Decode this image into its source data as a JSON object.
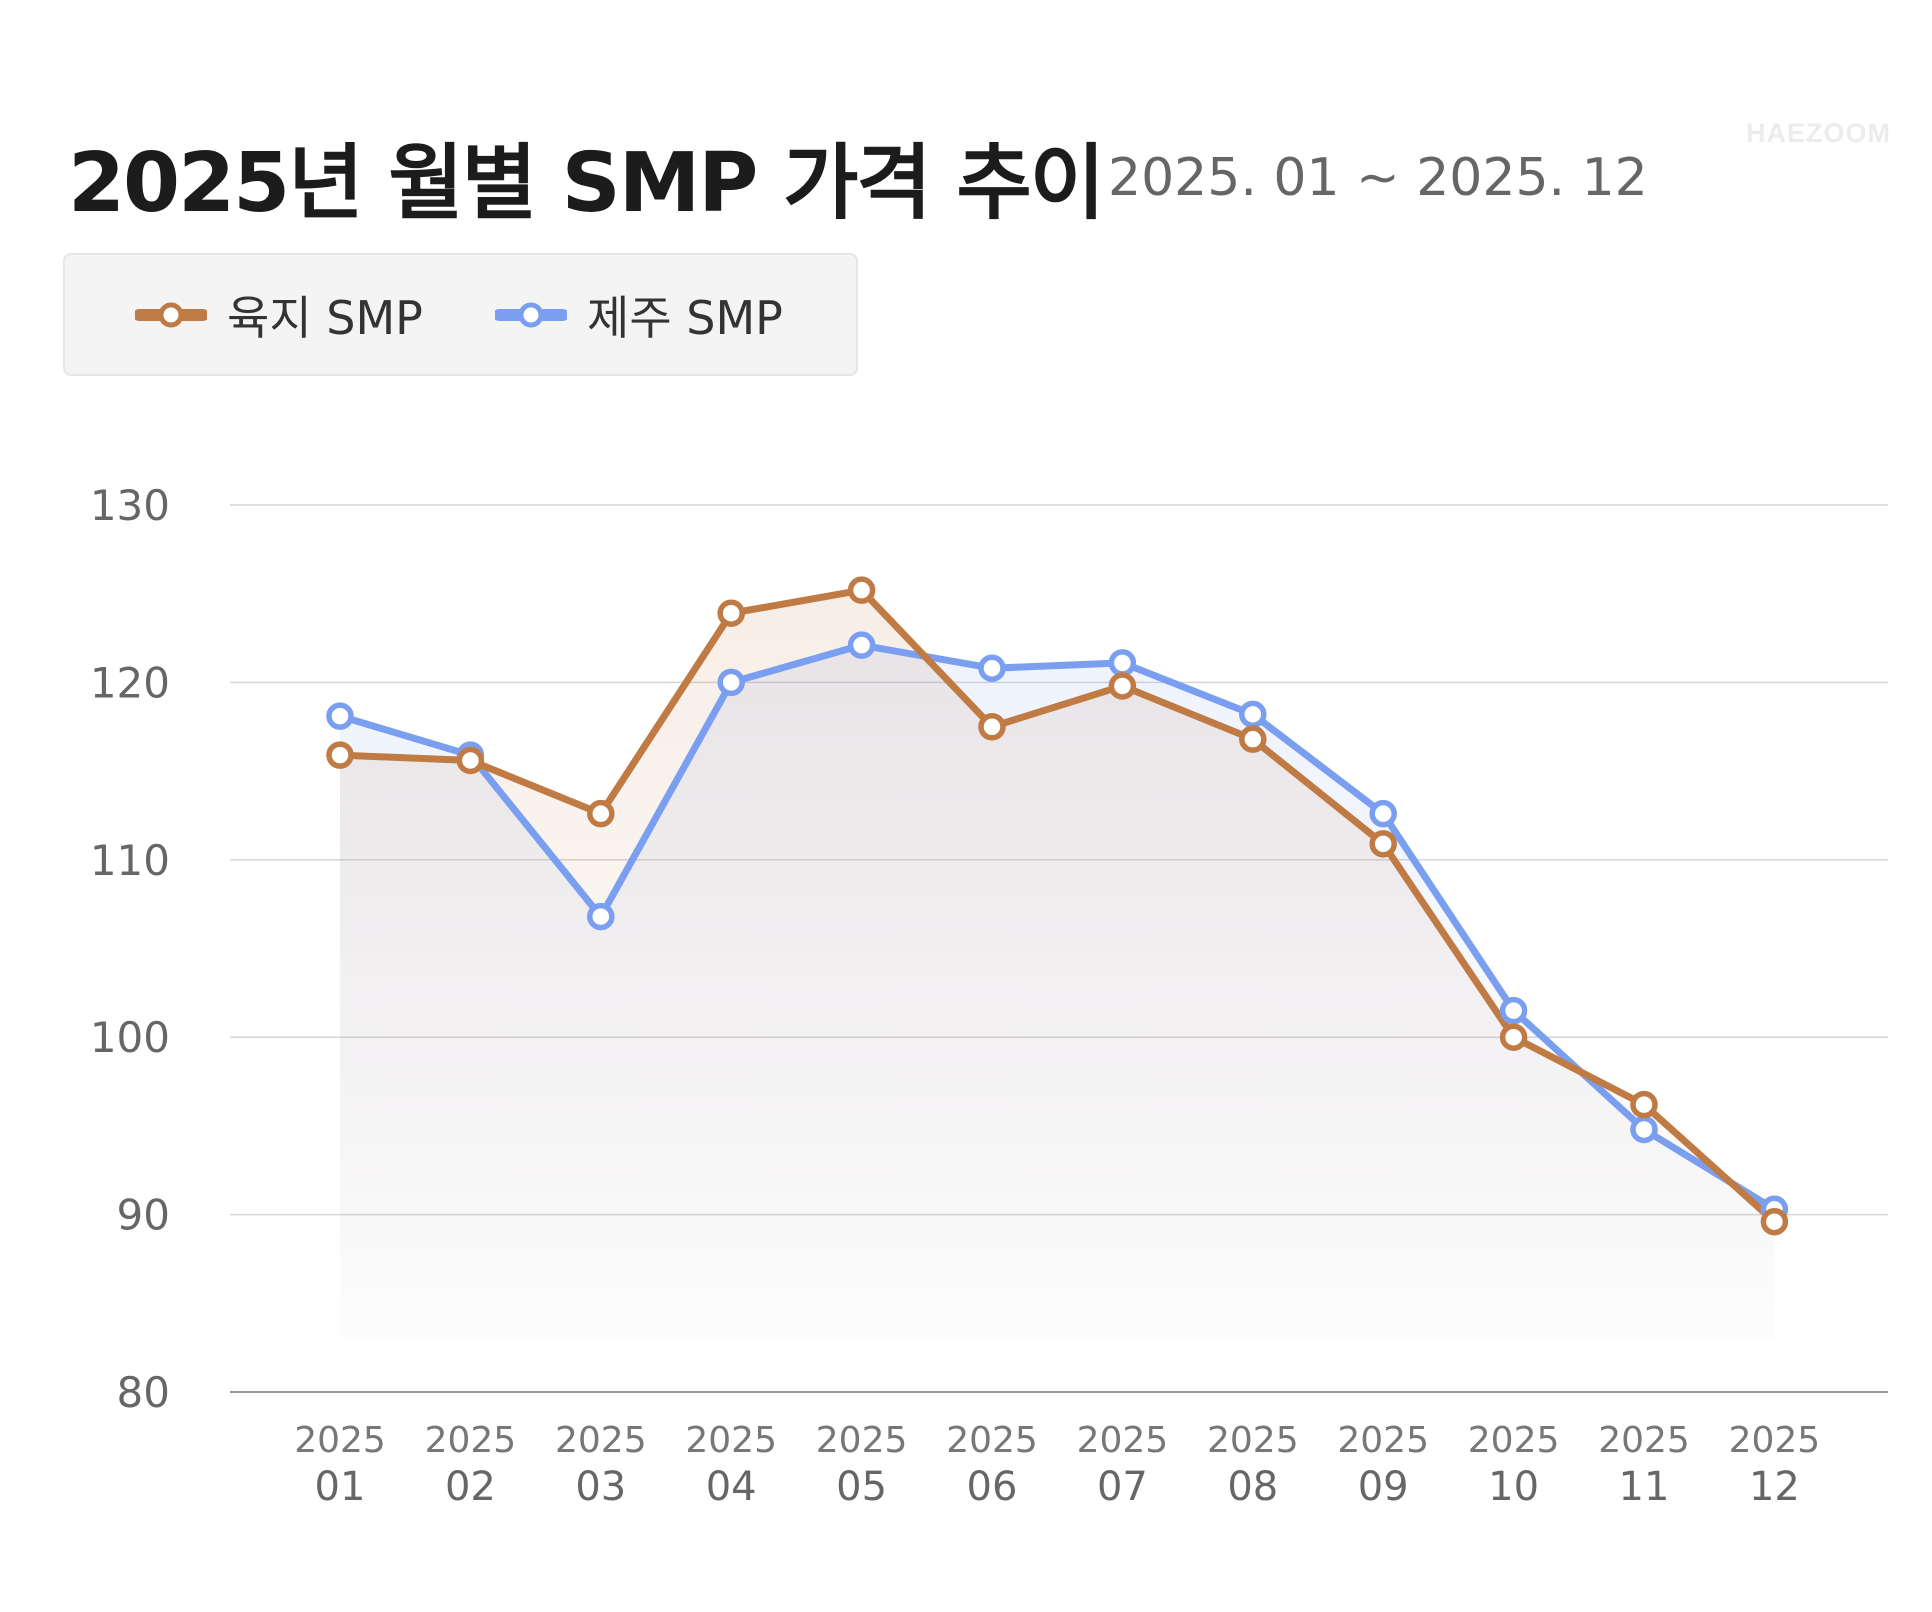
{
  "title": "2025년 월별 SMP 가격 추이",
  "subtitle": "2025. 01 ~ 2025. 12",
  "watermark": "HAEZOOM",
  "legend": [
    {
      "label": "육지 SMP",
      "color": "#c07a44"
    },
    {
      "label": "제주 SMP",
      "color": "#7b9ff0"
    }
  ],
  "chart_data": {
    "type": "line",
    "categories": [
      [
        "2025",
        "01"
      ],
      [
        "2025",
        "02"
      ],
      [
        "2025",
        "03"
      ],
      [
        "2025",
        "04"
      ],
      [
        "2025",
        "05"
      ],
      [
        "2025",
        "06"
      ],
      [
        "2025",
        "07"
      ],
      [
        "2025",
        "08"
      ],
      [
        "2025",
        "09"
      ],
      [
        "2025",
        "10"
      ],
      [
        "2025",
        "11"
      ],
      [
        "2025",
        "12"
      ]
    ],
    "series": [
      {
        "name": "육지 SMP",
        "color": "#c07a44",
        "values": [
          115.9,
          115.6,
          112.6,
          123.9,
          125.2,
          117.5,
          119.8,
          116.8,
          110.9,
          100.0,
          96.2,
          89.6
        ]
      },
      {
        "name": "제주 SMP",
        "color": "#7b9ff0",
        "values": [
          118.1,
          115.9,
          106.8,
          120.0,
          122.1,
          120.8,
          121.1,
          118.2,
          112.6,
          101.5,
          94.8,
          90.3
        ]
      }
    ],
    "ylim": [
      80,
      130
    ],
    "yticks": [
      80,
      90,
      100,
      110,
      120,
      130
    ],
    "grid": true,
    "legend_position": "top-left",
    "title": "2025년 월별 SMP 가격 추이",
    "xlabel": "",
    "ylabel": ""
  }
}
